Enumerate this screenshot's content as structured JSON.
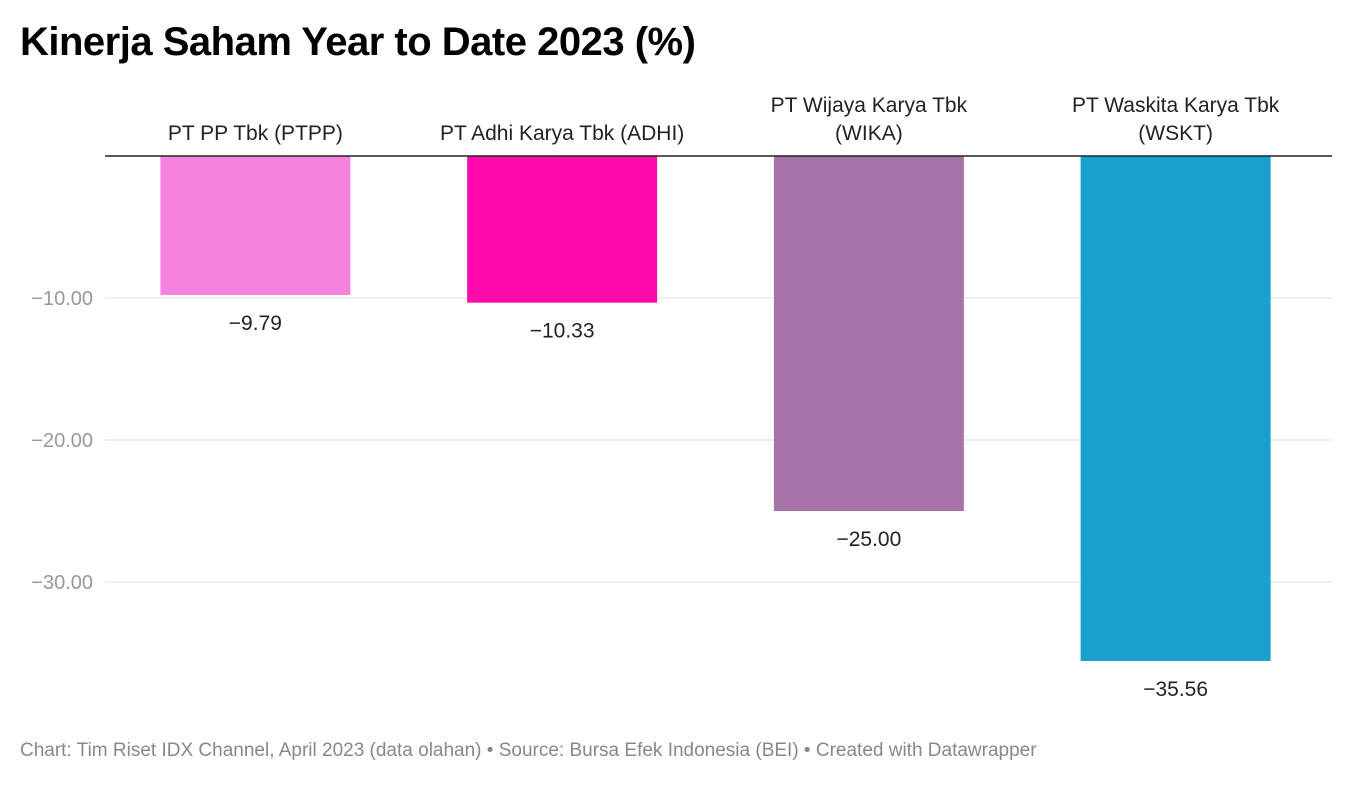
{
  "chart_data": {
    "type": "bar",
    "title": "Kinerja Saham Year to Date 2023 (%)",
    "categories": [
      [
        "PT PP Tbk (PTPP)"
      ],
      [
        "PT Adhi Karya Tbk (ADHI)"
      ],
      [
        "PT Wijaya Karya Tbk",
        "(WIKA)"
      ],
      [
        "PT Waskita Karya Tbk",
        "(WSKT)"
      ]
    ],
    "values": [
      -9.79,
      -10.33,
      -25.0,
      -35.56
    ],
    "value_labels": [
      "−9.79",
      "−10.33",
      "−25.00",
      "−35.56"
    ],
    "colors": [
      "#f582dd",
      "#ff0aad",
      "#a873a8",
      "#19a1cd"
    ],
    "yticks": [
      -10,
      -20,
      -30
    ],
    "ytick_labels": [
      "−10.00",
      "−20.00",
      "−30.00"
    ],
    "ylim": [
      -38.5,
      0
    ],
    "grid": true,
    "xlabel": "",
    "ylabel": ""
  },
  "footer": "Chart: Tim Riset IDX Channel, April 2023 (data olahan) • Source: Bursa Efek Indonesia (BEI) • Created with Datawrapper"
}
